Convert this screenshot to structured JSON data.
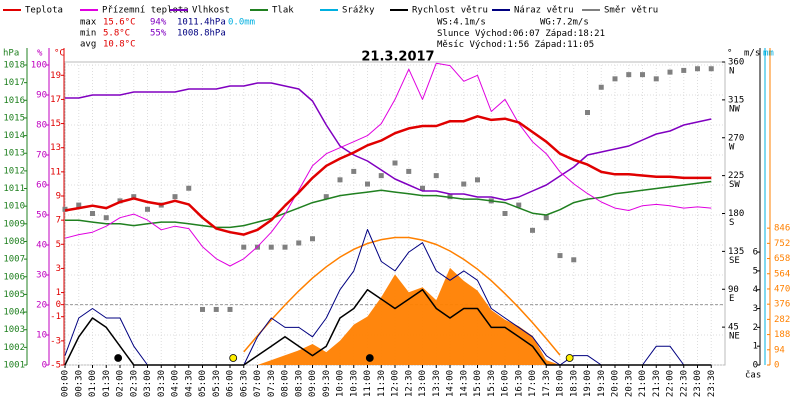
{
  "chart_data": {
    "type": "line",
    "title": "21.3.2017",
    "x_label": "čas",
    "categories": [
      "00:00",
      "00:30",
      "01:00",
      "01:30",
      "02:00",
      "02:30",
      "03:00",
      "03:30",
      "04:00",
      "04:30",
      "05:00",
      "05:30",
      "06:00",
      "06:30",
      "07:00",
      "07:30",
      "08:00",
      "08:30",
      "09:00",
      "09:30",
      "10:00",
      "10:30",
      "11:00",
      "11:30",
      "12:00",
      "12:30",
      "13:00",
      "13:30",
      "14:00",
      "14:30",
      "15:00",
      "15:30",
      "16:00",
      "16:30",
      "17:00",
      "17:30",
      "18:00",
      "18:30",
      "19:00",
      "19:30",
      "20:00",
      "20:30",
      "21:00",
      "21:30",
      "22:00",
      "22:30",
      "23:00",
      "23:30"
    ],
    "grid": true,
    "axes": {
      "press": {
        "label": "hPa",
        "color": "#208020",
        "ylim": [
          1001,
          1018.17
        ],
        "yticks": [
          1001,
          1002,
          1003,
          1004,
          1005,
          1006,
          1007,
          1008,
          1009,
          1010,
          1011,
          1012,
          1013,
          1014,
          1015,
          1016,
          1017,
          1018
        ]
      },
      "hum": {
        "label": "%",
        "color": "#c000c0",
        "ylim": [
          0,
          101
        ],
        "yticks": [
          0,
          10,
          20,
          30,
          40,
          50,
          60,
          70,
          80,
          90,
          100
        ]
      },
      "temp": {
        "label": "°C",
        "color": "#e00000",
        "ylim": [
          -5,
          20.1
        ],
        "yticks": [
          -5,
          -3,
          -1,
          0,
          1,
          3,
          5,
          7,
          9,
          11,
          13,
          15,
          17,
          19
        ]
      },
      "dir": {
        "label": "°",
        "color": "#000000",
        "ylim": [
          0,
          360
        ],
        "yticks": [
          45,
          90,
          135,
          180,
          225,
          270,
          315,
          360
        ],
        "tick_directions": [
          "NE",
          "E",
          "SE",
          "S",
          "SW",
          "W",
          "NW",
          "N"
        ]
      },
      "wind": {
        "label": "m/s",
        "color": "#000000",
        "ylim": [
          0,
          16.1
        ],
        "yticks": [
          0,
          1,
          2,
          3,
          4,
          5,
          6
        ]
      },
      "rain": {
        "label": "mm",
        "color": "#00b0e0"
      },
      "solar": {
        "color": "#ff8000",
        "ylim": [
          0,
          1873
        ],
        "yticks": [
          0,
          94,
          188,
          282,
          376,
          470,
          564,
          658,
          752,
          846
        ]
      }
    },
    "series": [
      {
        "name": "Teplota",
        "color": "#e00000",
        "axis": "temp",
        "width": 2.5,
        "values": [
          7.8,
          8.0,
          8.2,
          8.0,
          8.5,
          8.8,
          8.5,
          8.3,
          8.6,
          8.3,
          7.2,
          6.3,
          6.0,
          5.8,
          6.2,
          7.0,
          8.2,
          9.3,
          10.5,
          11.5,
          12.1,
          12.6,
          13.2,
          13.6,
          14.2,
          14.6,
          14.8,
          14.8,
          15.2,
          15.2,
          15.6,
          15.3,
          15.4,
          15.1,
          14.3,
          13.5,
          12.5,
          12.0,
          11.6,
          11.0,
          10.8,
          10.8,
          10.7,
          10.6,
          10.6,
          10.5,
          10.5,
          10.5
        ]
      },
      {
        "name": "Přízemní teplota",
        "color": "#e000e0",
        "axis": "temp",
        "width": 1,
        "values": [
          5.5,
          5.8,
          6.0,
          6.5,
          7.2,
          7.5,
          7.0,
          6.2,
          6.5,
          6.3,
          4.8,
          3.8,
          3.2,
          3.8,
          4.8,
          6.0,
          7.5,
          9.5,
          11.5,
          12.5,
          13.0,
          13.5,
          14.0,
          15.0,
          17.0,
          19.5,
          17.0,
          20.0,
          19.8,
          18.5,
          19.0,
          16.0,
          17.0,
          15.0,
          13.5,
          12.5,
          11.0,
          10.0,
          9.2,
          8.5,
          8.0,
          7.8,
          8.2,
          8.3,
          8.2,
          8.0,
          8.1,
          8.0
        ]
      },
      {
        "name": "Vlhkost",
        "color": "#8000c0",
        "axis": "hum",
        "width": 1.5,
        "values": [
          89,
          89,
          90,
          90,
          90,
          91,
          91,
          91,
          91,
          92,
          92,
          92,
          93,
          93,
          94,
          94,
          93,
          92,
          88,
          80,
          73,
          70,
          68,
          65,
          62,
          60,
          58,
          58,
          57,
          57,
          56,
          56,
          55,
          56,
          58,
          60,
          63,
          66,
          70,
          71,
          72,
          73,
          75,
          77,
          78,
          80,
          81,
          82
        ]
      },
      {
        "name": "Tlak",
        "color": "#208020",
        "axis": "press",
        "width": 1.5,
        "values": [
          1009.2,
          1009.2,
          1009.1,
          1009.0,
          1009.0,
          1008.9,
          1009.0,
          1009.1,
          1009.1,
          1009.0,
          1008.9,
          1008.8,
          1008.8,
          1008.9,
          1009.1,
          1009.3,
          1009.6,
          1009.9,
          1010.2,
          1010.4,
          1010.6,
          1010.7,
          1010.8,
          1010.9,
          1010.8,
          1010.7,
          1010.6,
          1010.6,
          1010.5,
          1010.4,
          1010.4,
          1010.3,
          1010.2,
          1009.9,
          1009.6,
          1009.5,
          1009.8,
          1010.2,
          1010.4,
          1010.5,
          1010.7,
          1010.8,
          1010.9,
          1011.0,
          1011.1,
          1011.2,
          1011.3,
          1011.4
        ]
      },
      {
        "name": "Srážky",
        "color": "#00b0e0",
        "axis": "rain"
      },
      {
        "name": "Rychlost větru",
        "color": "#000000",
        "axis": "wind",
        "width": 1.5,
        "values": [
          0,
          1.5,
          2.5,
          2,
          1,
          0,
          0,
          0,
          0,
          0,
          0,
          0,
          0,
          0,
          0.5,
          1,
          1.5,
          1,
          0.5,
          1,
          2.5,
          3,
          4,
          3.5,
          3,
          3.5,
          4,
          3,
          2.5,
          3,
          3,
          2,
          2,
          1.5,
          1,
          0,
          0,
          0,
          0,
          0,
          0,
          0,
          0,
          0,
          0,
          0,
          0,
          0
        ]
      },
      {
        "name": "Náraz větru",
        "color": "#000080",
        "axis": "wind",
        "width": 1,
        "values": [
          0.5,
          2.5,
          3,
          2.5,
          2.5,
          1,
          0,
          0,
          0,
          0,
          0,
          0,
          0,
          0,
          1.5,
          2.5,
          2,
          2,
          1.5,
          2.5,
          4,
          5,
          7.2,
          5.5,
          5,
          6,
          6.5,
          5,
          4.5,
          5,
          4.5,
          3,
          2.5,
          2,
          1.5,
          0.5,
          0,
          0.5,
          0.5,
          0,
          0,
          0,
          0,
          1,
          1,
          0,
          0,
          0
        ]
      },
      {
        "name": "Směr větru",
        "color": "#808080",
        "axis": "dir",
        "kind": "points",
        "values": [
          185,
          190,
          180,
          175,
          195,
          200,
          185,
          190,
          200,
          210,
          66,
          66,
          66,
          140,
          140,
          140,
          140,
          145,
          150,
          200,
          220,
          230,
          215,
          225,
          240,
          230,
          210,
          225,
          200,
          215,
          220,
          195,
          180,
          190,
          160,
          175,
          130,
          125,
          300,
          330,
          340,
          345,
          345,
          340,
          348,
          350,
          352,
          352
        ]
      }
    ],
    "radiation": {
      "color": "#ff8000",
      "axis": "solar",
      "values": [
        null,
        null,
        null,
        null,
        null,
        null,
        null,
        null,
        null,
        null,
        null,
        null,
        null,
        null,
        0,
        30,
        60,
        90,
        130,
        80,
        150,
        250,
        300,
        420,
        560,
        450,
        480,
        400,
        600,
        520,
        460,
        340,
        280,
        240,
        180,
        30,
        0,
        null,
        null,
        null,
        null,
        null,
        null,
        null,
        null,
        null,
        null,
        null
      ],
      "clear_sky": [
        null,
        null,
        null,
        null,
        null,
        null,
        null,
        null,
        null,
        null,
        null,
        null,
        null,
        81,
        181,
        279,
        371,
        458,
        537,
        607,
        667,
        715,
        751,
        775,
        788,
        788,
        772,
        745,
        705,
        653,
        592,
        521,
        441,
        354,
        262,
        163,
        61,
        null,
        null,
        null,
        null,
        null,
        null,
        null,
        null,
        null,
        null,
        null
      ]
    },
    "stats": [
      {
        "label": "max",
        "temp": "15.6°C",
        "hum": "94%",
        "press": "1011.4hPa",
        "rain": "0.0mm"
      },
      {
        "label": "min",
        "temp": "5.8°C",
        "hum": "55%",
        "press": "1008.8hPa"
      },
      {
        "label": "avg",
        "temp": "10.8°C"
      }
    ],
    "wind_info": {
      "ws": "WS:4.1m/s",
      "wg": "WG:7.2m/s"
    },
    "astro": {
      "sun_label": "Slunce",
      "moon_label": "Měsíc",
      "rise_label": "Východ:",
      "set_label": "Západ:",
      "sun_rise": "06:07",
      "sun_set": "18:21",
      "moon_rise": "1:56",
      "moon_set": "11:05"
    }
  }
}
